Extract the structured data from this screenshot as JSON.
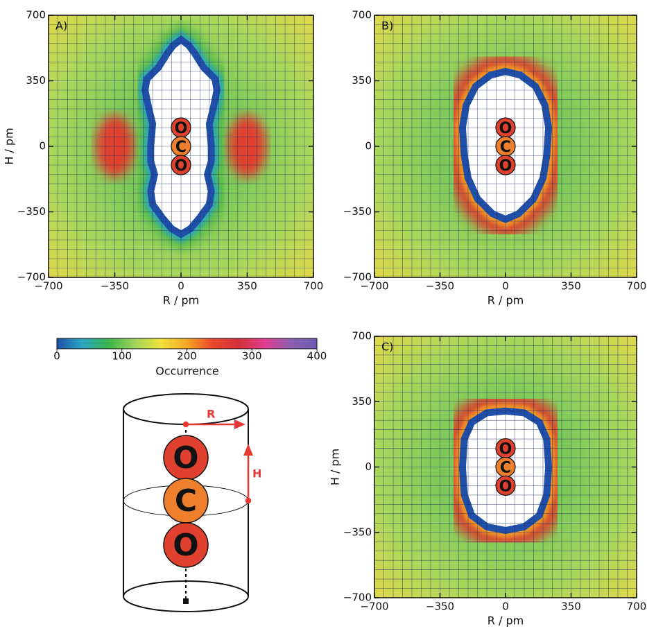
{
  "chart_data": [
    {
      "type": "heatmap",
      "panel_label": "A)",
      "xlabel": "R / pm",
      "ylabel": "H / pm",
      "xlim": [
        -700,
        700
      ],
      "ylim": [
        -700,
        700
      ],
      "xticks": [
        {
          "value": -700,
          "label": "−700"
        },
        {
          "value": -350,
          "label": "−350"
        },
        0,
        350,
        700
      ],
      "yticks": [
        {
          "value": -700,
          "label": "−700"
        },
        {
          "value": -350,
          "label": "−350"
        },
        0,
        350,
        700
      ]
    },
    {
      "type": "heatmap",
      "panel_label": "B)",
      "xlabel": "R / pm",
      "xlim": [
        -700,
        700
      ],
      "ylim": [
        -700,
        700
      ],
      "xticks": [
        {
          "value": -700,
          "label": "−700"
        },
        {
          "value": -350,
          "label": "−350"
        },
        0,
        350,
        700
      ],
      "yticks": [
        {
          "value": -700,
          "label": "−700"
        },
        {
          "value": -350,
          "label": "−350"
        },
        0,
        350,
        700
      ]
    },
    {
      "type": "heatmap",
      "panel_label": "C)",
      "xlabel": "R / pm",
      "ylabel": "H / pm",
      "xlim": [
        -700,
        700
      ],
      "ylim": [
        -700,
        700
      ],
      "xticks": [
        {
          "value": -700,
          "label": "−700"
        },
        {
          "value": -350,
          "label": "−350"
        },
        0,
        350,
        700
      ],
      "yticks": [
        {
          "value": -700,
          "label": "−700"
        },
        {
          "value": -350,
          "label": "−350"
        },
        0,
        350,
        700
      ]
    }
  ],
  "colorbar": {
    "label": "Occurrence",
    "lim": [
      0,
      400
    ],
    "ticks": [
      0,
      100,
      200,
      300,
      400
    ],
    "colors": [
      "#1f4fa8",
      "#2aa6c0",
      "#3cb54a",
      "#9fd35a",
      "#f2e33a",
      "#f5a623",
      "#e8452b",
      "#d42f3a",
      "#e03c8f",
      "#8a5fb0",
      "#6a5ab0"
    ]
  },
  "molecule": [
    "O",
    "C",
    "O"
  ],
  "diagram": {
    "r_label": "R",
    "h_label": "H"
  }
}
